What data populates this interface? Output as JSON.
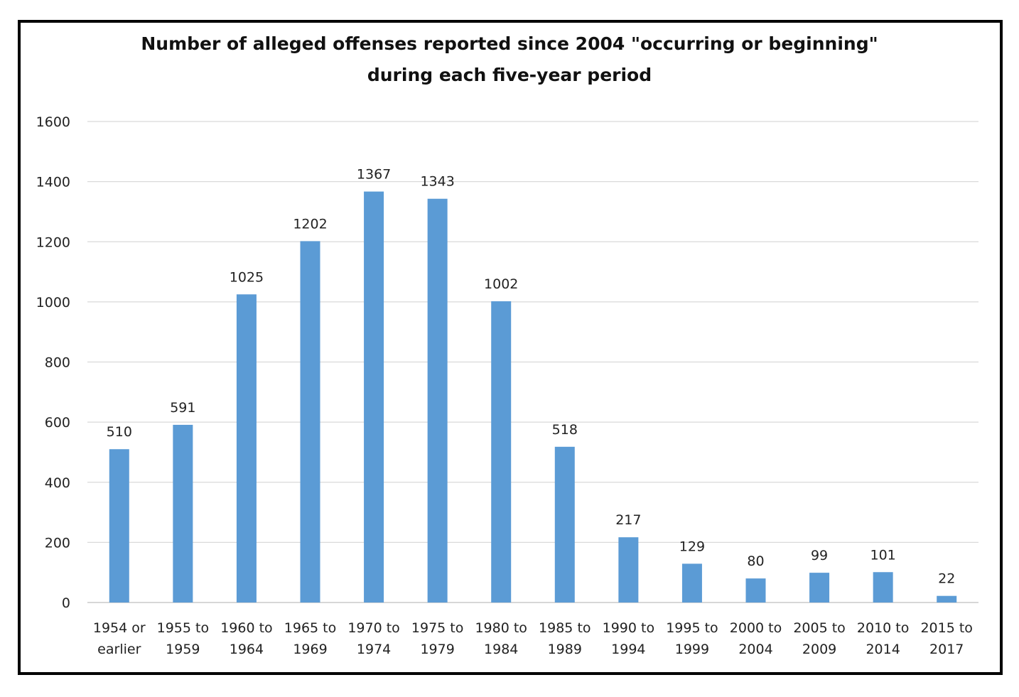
{
  "chart_data": {
    "type": "bar",
    "title_lines": [
      "Number of alleged offenses reported since 2004 \"occurring or beginning\"",
      "during each five-year period"
    ],
    "categories": [
      [
        "1954 or",
        "earlier"
      ],
      [
        "1955 to",
        "1959"
      ],
      [
        "1960 to",
        "1964"
      ],
      [
        "1965 to",
        "1969"
      ],
      [
        "1970 to",
        "1974"
      ],
      [
        "1975 to",
        "1979"
      ],
      [
        "1980 to",
        "1984"
      ],
      [
        "1985 to",
        "1989"
      ],
      [
        "1990 to",
        "1994"
      ],
      [
        "1995 to",
        "1999"
      ],
      [
        "2000 to",
        "2004"
      ],
      [
        "2005 to",
        "2009"
      ],
      [
        "2010 to",
        "2014"
      ],
      [
        "2015 to",
        "2017"
      ]
    ],
    "values": [
      510,
      591,
      1025,
      1202,
      1367,
      1343,
      1002,
      518,
      217,
      129,
      80,
      99,
      101,
      22
    ],
    "yticks": [
      0,
      200,
      400,
      600,
      800,
      1000,
      1200,
      1400,
      1600
    ],
    "ylim": [
      0,
      1600
    ],
    "grid": true,
    "legend": false,
    "data_labels": true,
    "bar_color": "#5B9BD5",
    "gridline_color": "#D9D9D9"
  }
}
